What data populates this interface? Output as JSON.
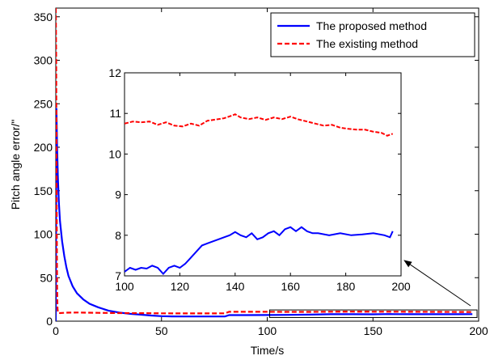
{
  "chart_data": {
    "type": "line",
    "xlabel": "Time/s",
    "ylabel": "Pitch angle error/\"",
    "xlim": [
      0,
      200
    ],
    "ylim": [
      0,
      360
    ],
    "xticks": [
      0,
      50,
      100,
      150,
      200
    ],
    "yticks": [
      0,
      50,
      100,
      150,
      200,
      250,
      300,
      350
    ],
    "grid": false,
    "legend_position": "top-right",
    "series": [
      {
        "name": "The proposed method",
        "color": "#0000ff",
        "style": "solid",
        "x": [
          0,
          0.3,
          0.6,
          1,
          1.5,
          2,
          3,
          4,
          5,
          6,
          8,
          10,
          13,
          16,
          20,
          25,
          30,
          35,
          40,
          45,
          50,
          55,
          60,
          70,
          80,
          82,
          90,
          100,
          110,
          120,
          130,
          140,
          150,
          155,
          158,
          160,
          170,
          180,
          190,
          197
        ],
        "y": [
          0,
          245,
          200,
          165,
          135,
          115,
          92,
          75,
          62,
          52,
          40,
          32,
          25,
          20,
          16,
          12,
          10,
          8.5,
          7.5,
          6.5,
          5.8,
          5.5,
          5.4,
          5.4,
          5.4,
          7.0,
          7.0,
          7.1,
          7.3,
          7.5,
          8.0,
          8.0,
          7.9,
          8.1,
          8.2,
          8.1,
          8.0,
          8.0,
          8.0,
          8.1
        ]
      },
      {
        "name": "The existing method",
        "color": "#ff0000",
        "style": "dashed",
        "x": [
          0,
          0.2,
          0.4,
          0.6,
          0.8,
          1,
          1.5,
          2,
          3,
          5,
          10,
          20,
          30,
          40,
          50,
          60,
          70,
          80,
          82,
          90,
          100,
          110,
          120,
          130,
          140,
          150,
          160,
          170,
          180,
          190,
          197
        ],
        "y": [
          360,
          300,
          150,
          40,
          15,
          10,
          9.5,
          9.3,
          9.5,
          9.8,
          10.0,
          9.6,
          9.3,
          9.2,
          9.0,
          8.9,
          8.9,
          9.0,
          10.8,
          10.8,
          10.8,
          10.7,
          10.7,
          10.9,
          11.0,
          10.9,
          10.9,
          10.8,
          10.7,
          10.6,
          10.5
        ]
      }
    ],
    "inset": {
      "xlim": [
        100,
        200
      ],
      "ylim": [
        7,
        12
      ],
      "xticks": [
        100,
        120,
        140,
        160,
        180,
        200
      ],
      "yticks": [
        7,
        8,
        9,
        10,
        11,
        12
      ],
      "series": [
        {
          "name": "The existing method",
          "color": "#ff0000",
          "style": "dashed",
          "x": [
            100,
            103,
            106,
            109,
            112,
            115,
            118,
            121,
            124,
            127,
            130,
            133,
            136,
            139,
            140,
            142,
            145,
            148,
            151,
            154,
            157,
            160,
            163,
            166,
            169,
            172,
            175,
            178,
            181,
            184,
            187,
            190,
            193,
            195,
            197
          ],
          "y": [
            10.75,
            10.8,
            10.78,
            10.8,
            10.72,
            10.78,
            10.7,
            10.68,
            10.75,
            10.7,
            10.82,
            10.85,
            10.88,
            10.95,
            10.98,
            10.9,
            10.86,
            10.9,
            10.84,
            10.9,
            10.86,
            10.92,
            10.85,
            10.8,
            10.75,
            10.7,
            10.72,
            10.65,
            10.62,
            10.6,
            10.6,
            10.55,
            10.52,
            10.45,
            10.5
          ]
        },
        {
          "name": "The proposed method",
          "color": "#0000ff",
          "style": "solid",
          "x": [
            100,
            102,
            104,
            106,
            108,
            110,
            112,
            114,
            116,
            118,
            120,
            122,
            124,
            126,
            128,
            130,
            132,
            134,
            136,
            138,
            140,
            142,
            144,
            146,
            148,
            150,
            152,
            154,
            156,
            158,
            160,
            162,
            164,
            166,
            168,
            170,
            174,
            178,
            182,
            186,
            190,
            194,
            196,
            197
          ],
          "y": [
            7.1,
            7.2,
            7.15,
            7.2,
            7.18,
            7.25,
            7.2,
            7.05,
            7.2,
            7.25,
            7.2,
            7.3,
            7.45,
            7.6,
            7.75,
            7.8,
            7.85,
            7.9,
            7.95,
            8.0,
            8.08,
            8.0,
            7.95,
            8.05,
            7.9,
            7.95,
            8.05,
            8.1,
            8.0,
            8.15,
            8.2,
            8.1,
            8.2,
            8.1,
            8.05,
            8.05,
            8.0,
            8.05,
            8.0,
            8.02,
            8.05,
            8.0,
            7.95,
            8.1
          ]
        }
      ]
    }
  }
}
